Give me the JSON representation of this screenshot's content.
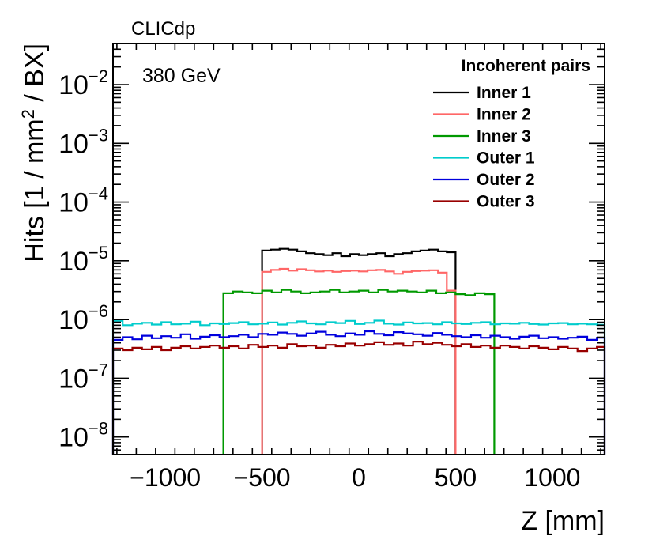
{
  "chart_data": {
    "type": "line",
    "style": "step-histogram",
    "title": "",
    "collaboration_label": "CLICdp",
    "energy_label": "380 GeV",
    "xlabel": "Z [mm]",
    "ylabel": {
      "pre": "Hits [1 / mm",
      "sup": "2",
      "post": " / BX]"
    },
    "xlim": [
      -1270,
      1270
    ],
    "ylim_log10": [
      -8.3,
      -1.3
    ],
    "yscale": "log",
    "x_ticks": [
      {
        "v": -1000,
        "label": "−1000"
      },
      {
        "v": -500,
        "label": "−500"
      },
      {
        "v": 0,
        "label": "0"
      },
      {
        "v": 500,
        "label": "500"
      },
      {
        "v": 1000,
        "label": "1000"
      }
    ],
    "y_ticks": [
      {
        "exp": -8,
        "base": "10",
        "sup": "−8"
      },
      {
        "exp": -7,
        "base": "10",
        "sup": "−7"
      },
      {
        "exp": -6,
        "base": "10",
        "sup": "−6"
      },
      {
        "exp": -5,
        "base": "10",
        "sup": "−5"
      },
      {
        "exp": -4,
        "base": "10",
        "sup": "−4"
      },
      {
        "exp": -3,
        "base": "10",
        "sup": "−3"
      },
      {
        "exp": -2,
        "base": "10",
        "sup": "−2"
      }
    ],
    "legend": {
      "title": "Incoherent pairs",
      "position": "top-right"
    },
    "bin_edges": [
      -1270,
      -1220,
      -1170,
      -1120,
      -1070,
      -1020,
      -970,
      -920,
      -870,
      -820,
      -770,
      -720,
      -670,
      -620,
      -570,
      -520,
      -470,
      -420,
      -370,
      -320,
      -270,
      -220,
      -170,
      -120,
      -70,
      -20,
      30,
      80,
      130,
      180,
      230,
      280,
      330,
      380,
      430,
      480,
      530,
      580,
      630,
      680,
      730,
      780,
      830,
      880,
      930,
      980,
      1030,
      1080,
      1130,
      1180,
      1230,
      1270
    ],
    "series": [
      {
        "name": "Inner 1",
        "color": "#000000",
        "x_range": [
          -500,
          500
        ],
        "values": [
          1.5e-05,
          1.55e-05,
          1.6e-05,
          1.55e-05,
          1.45e-05,
          1.35e-05,
          1.3e-05,
          1.25e-05,
          1.35e-05,
          1.2e-05,
          1.3e-05,
          1.25e-05,
          1.3e-05,
          1.35e-05,
          1.2e-05,
          1.3e-05,
          1.35e-05,
          1.45e-05,
          1.5e-05,
          1.55e-05,
          1.45e-05,
          1.4e-05
        ]
      },
      {
        "name": "Inner 2",
        "color": "#ff6666",
        "x_range": [
          -500,
          500
        ],
        "values": [
          6.5e-06,
          7e-06,
          7.3e-06,
          6.8e-06,
          7.2e-06,
          6.9e-06,
          6.6e-06,
          6.8e-06,
          6.5e-06,
          6.7e-06,
          6.8e-06,
          6.6e-06,
          6.9e-06,
          7e-06,
          6.6e-06,
          6e-06,
          6.5e-06,
          6.7e-06,
          6.8e-06,
          6.9e-06,
          6.3e-06,
          3.1e-06
        ]
      },
      {
        "name": "Inner 3",
        "color": "#009900",
        "x_range": [
          -700,
          700
        ],
        "values": [
          2.8e-06,
          3e-06,
          2.9e-06,
          2.8e-06,
          3.1e-06,
          2.9e-06,
          3.2e-06,
          3e-06,
          2.8e-06,
          2.9e-06,
          3e-06,
          3.2e-06,
          2.9e-06,
          3e-06,
          3.1e-06,
          2.9e-06,
          3.2e-06,
          3e-06,
          3.1e-06,
          3e-06,
          2.9e-06,
          3.1e-06,
          2.8e-06,
          2.9e-06,
          2.7e-06,
          2.6e-06,
          2.8e-06,
          2.7e-06
        ]
      },
      {
        "name": "Outer 1",
        "color": "#00cccc",
        "x_range": [
          -1270,
          1270
        ],
        "values": [
          9.5e-07,
          8e-07,
          8.5e-07,
          8.8e-07,
          8.2e-07,
          9e-07,
          8.3e-07,
          8.5e-07,
          9.2e-07,
          8e-07,
          8.6e-07,
          8.4e-07,
          8.7e-07,
          9e-07,
          8.3e-07,
          8.5e-07,
          8.9e-07,
          8.2e-07,
          8.8e-07,
          9.3e-07,
          8.6e-07,
          8.3e-07,
          9e-07,
          8.7e-07,
          9.5e-07,
          8.4e-07,
          8.8e-07,
          9.6e-07,
          8.5e-07,
          8.2e-07,
          8.9e-07,
          8.6e-07,
          8.7e-07,
          8.3e-07,
          9e-07,
          8.6e-07,
          8.4e-07,
          8.8e-07,
          9e-07,
          8.3e-07,
          8.6e-07,
          8.5e-07,
          8.8e-07,
          8.4e-07,
          8.2e-07,
          8.6e-07,
          8.7e-07,
          8.3e-07,
          8.5e-07,
          8.3e-07,
          8.1e-07
        ]
      },
      {
        "name": "Outer 2",
        "color": "#0000dd",
        "x_range": [
          -1270,
          1270
        ],
        "values": [
          4.5e-07,
          5e-07,
          4.6e-07,
          5.3e-07,
          4.8e-07,
          5.2e-07,
          4.9e-07,
          5.6e-07,
          4.7e-07,
          5.1e-07,
          5.4e-07,
          5e-07,
          5.2e-07,
          5.5e-07,
          5e-07,
          5.7e-07,
          5.5e-07,
          6e-07,
          5.7e-07,
          5.3e-07,
          5.8e-07,
          6.2e-07,
          5.5e-07,
          5.2e-07,
          5.8e-07,
          5.5e-07,
          6.3e-07,
          5.7e-07,
          5.4e-07,
          6.1e-07,
          5.8e-07,
          5.6e-07,
          5.3e-07,
          5.9e-07,
          5.5e-07,
          5.2e-07,
          5e-07,
          5.4e-07,
          4.9e-07,
          5.3e-07,
          5e-07,
          4.7e-07,
          5.1e-07,
          5.3e-07,
          4.8e-07,
          5e-07,
          4.7e-07,
          4.9e-07,
          5.1e-07,
          4.5e-07,
          4.9e-07
        ]
      },
      {
        "name": "Outer 3",
        "color": "#990000",
        "x_range": [
          -1270,
          1270
        ],
        "values": [
          3.2e-07,
          3e-07,
          3.3e-07,
          3.1e-07,
          3.4e-07,
          3e-07,
          3.3e-07,
          3.5e-07,
          3.2e-07,
          3.4e-07,
          3.6e-07,
          3.3e-07,
          3.5e-07,
          3.2e-07,
          3.7e-07,
          3.4e-07,
          3.6e-07,
          3.3e-07,
          3.8e-07,
          3.5e-07,
          3.6e-07,
          3.3e-07,
          3.7e-07,
          3.5e-07,
          3.9e-07,
          3.6e-07,
          3.8e-07,
          4.1e-07,
          3.7e-07,
          3.9e-07,
          3.6e-07,
          4.2e-07,
          3.8e-07,
          4e-07,
          3.7e-07,
          3.5e-07,
          3.8e-07,
          3.4e-07,
          3.6e-07,
          3.3e-07,
          3.6e-07,
          3.4e-07,
          3.2e-07,
          3.5e-07,
          3.3e-07,
          3.1e-07,
          3.4e-07,
          3.2e-07,
          2.9e-07,
          3.2e-07,
          3.4e-07
        ]
      }
    ]
  }
}
